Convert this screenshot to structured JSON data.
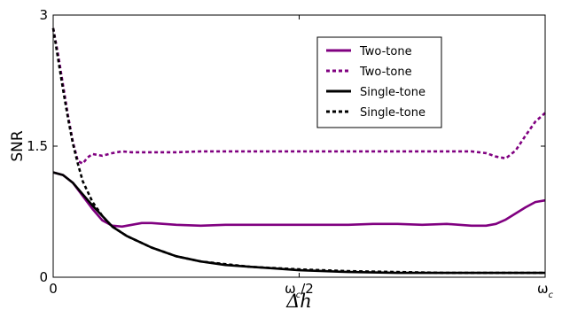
{
  "chart_data": {
    "type": "line",
    "xlabel": "Δh",
    "ylabel": "SNR",
    "xlim": [
      0,
      1
    ],
    "ylim": [
      0,
      3
    ],
    "x_ticks": [
      {
        "value": 0,
        "base": "0",
        "sub": ""
      },
      {
        "value": 0.5,
        "base": "ω",
        "sub": "c",
        "suffix": "/2"
      },
      {
        "value": 1,
        "base": "ω",
        "sub": "c",
        "suffix": ""
      }
    ],
    "y_ticks": [
      {
        "value": 0,
        "label": "0"
      },
      {
        "value": 1.5,
        "label": "1.5"
      },
      {
        "value": 3,
        "label": "3"
      }
    ],
    "grid": false,
    "legend_position": "upper-right",
    "series": [
      {
        "name": "Two-tone",
        "color": "#800080",
        "style": "solid",
        "x": [
          0,
          0.02,
          0.04,
          0.06,
          0.08,
          0.1,
          0.12,
          0.14,
          0.16,
          0.18,
          0.2,
          0.25,
          0.3,
          0.35,
          0.4,
          0.45,
          0.5,
          0.55,
          0.6,
          0.65,
          0.7,
          0.75,
          0.8,
          0.85,
          0.88,
          0.9,
          0.92,
          0.94,
          0.96,
          0.98,
          1.0
        ],
        "y": [
          1.2,
          1.17,
          1.08,
          0.93,
          0.78,
          0.65,
          0.59,
          0.58,
          0.6,
          0.62,
          0.62,
          0.6,
          0.59,
          0.6,
          0.6,
          0.6,
          0.6,
          0.6,
          0.6,
          0.61,
          0.61,
          0.6,
          0.61,
          0.59,
          0.59,
          0.61,
          0.66,
          0.73,
          0.8,
          0.86,
          0.88
        ]
      },
      {
        "name": "Two-tone",
        "color": "#800080",
        "style": "dashed",
        "x": [
          0,
          0.01,
          0.02,
          0.03,
          0.04,
          0.05,
          0.06,
          0.07,
          0.08,
          0.09,
          0.1,
          0.12,
          0.14,
          0.16,
          0.2,
          0.25,
          0.3,
          0.35,
          0.4,
          0.45,
          0.5,
          0.55,
          0.6,
          0.65,
          0.7,
          0.75,
          0.8,
          0.85,
          0.88,
          0.9,
          0.92,
          0.94,
          0.96,
          0.98,
          1.0
        ],
        "y": [
          2.85,
          2.55,
          2.2,
          1.85,
          1.55,
          1.33,
          1.3,
          1.37,
          1.41,
          1.4,
          1.39,
          1.42,
          1.44,
          1.43,
          1.43,
          1.43,
          1.44,
          1.44,
          1.44,
          1.44,
          1.44,
          1.44,
          1.44,
          1.44,
          1.44,
          1.44,
          1.44,
          1.44,
          1.42,
          1.38,
          1.36,
          1.45,
          1.62,
          1.78,
          1.88
        ]
      },
      {
        "name": "Single-tone",
        "color": "#000000",
        "style": "solid",
        "x": [
          0,
          0.02,
          0.04,
          0.06,
          0.08,
          0.1,
          0.12,
          0.15,
          0.2,
          0.25,
          0.3,
          0.35,
          0.4,
          0.45,
          0.5,
          0.6,
          0.7,
          0.8,
          0.9,
          1.0
        ],
        "y": [
          1.2,
          1.17,
          1.08,
          0.95,
          0.82,
          0.7,
          0.58,
          0.47,
          0.34,
          0.24,
          0.18,
          0.14,
          0.12,
          0.1,
          0.08,
          0.06,
          0.05,
          0.05,
          0.05,
          0.05
        ]
      },
      {
        "name": "Single-tone",
        "color": "#000000",
        "style": "dashed",
        "x": [
          0,
          0.01,
          0.02,
          0.03,
          0.04,
          0.05,
          0.06,
          0.08,
          0.1,
          0.12,
          0.15,
          0.2,
          0.25,
          0.3,
          0.4,
          0.5,
          0.6,
          0.7,
          0.8,
          0.9,
          1.0
        ],
        "y": [
          2.85,
          2.5,
          2.15,
          1.82,
          1.53,
          1.3,
          1.1,
          0.86,
          0.7,
          0.58,
          0.47,
          0.34,
          0.24,
          0.18,
          0.12,
          0.09,
          0.07,
          0.06,
          0.05,
          0.05,
          0.05
        ]
      }
    ]
  }
}
